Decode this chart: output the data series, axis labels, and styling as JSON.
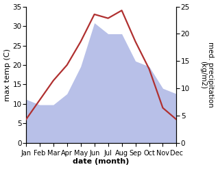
{
  "months": [
    "Jan",
    "Feb",
    "Mar",
    "Apr",
    "May",
    "Jun",
    "Jul",
    "Aug",
    "Sep",
    "Oct",
    "Nov",
    "Dec"
  ],
  "temperature": [
    6,
    11,
    16,
    20,
    26,
    33,
    32,
    34,
    26,
    19,
    9,
    6
  ],
  "precipitation": [
    8,
    7,
    7,
    9,
    14,
    22,
    20,
    20,
    15,
    14,
    10,
    9
  ],
  "temp_color": "#b03030",
  "precip_color": "#b8c0e8",
  "ylabel_left": "max temp (C)",
  "ylabel_right": "med. precipitation\n(kg/m2)",
  "xlabel": "date (month)",
  "ylim_left": [
    0,
    35
  ],
  "ylim_right": [
    0,
    25
  ],
  "yticks_left": [
    0,
    5,
    10,
    15,
    20,
    25,
    30,
    35
  ],
  "yticks_right": [
    0,
    5,
    10,
    15,
    20,
    25
  ],
  "bg_color": "#ffffff",
  "label_fontsize": 8,
  "tick_fontsize": 7.5
}
